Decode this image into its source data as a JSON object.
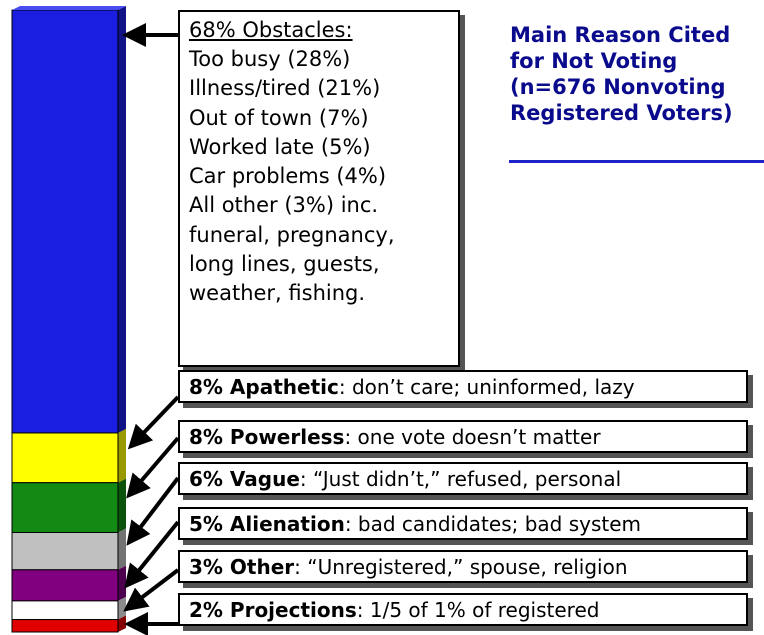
{
  "title": {
    "lines": [
      "Main Reason Cited",
      "for Not Voting",
      "(n=676 Nonvoting",
      "Registered Voters)"
    ]
  },
  "obstacles": {
    "heading": "68% Obstacles",
    "heading_suffix": ":",
    "items": [
      "Too busy (28%)",
      "Illness/tired (21%)",
      "Out of town (7%)",
      "Worked late (5%)",
      "Car problems (4%)",
      "All other (3%) inc.",
      "funeral, pregnancy,",
      "long lines, guests,",
      "weather, fishing."
    ]
  },
  "reasons": [
    {
      "label": "8% Apathetic",
      "text": ": don’t care; uninformed, lazy"
    },
    {
      "label": "8% Powerless",
      "text": ": one vote doesn’t matter"
    },
    {
      "label": "6% Vague",
      "text": ": “Just didn’t,” refused, personal"
    },
    {
      "label": "5% Alienation",
      "text": ": bad candidates; bad system"
    },
    {
      "label": "3% Other",
      "text": ": “Unregistered,” spouse, religion"
    },
    {
      "label": "2% Projections",
      "text": ":  1/5 of 1% of registered"
    }
  ],
  "chart_data": {
    "type": "bar",
    "stacked": true,
    "categories": [
      "Obstacles",
      "Apathetic",
      "Powerless",
      "Vague",
      "Alienation",
      "Other",
      "Projections"
    ],
    "values": [
      68,
      8,
      8,
      6,
      5,
      3,
      2
    ],
    "unit": "%",
    "colors": [
      "#1a1ee0",
      "#ffff00",
      "#138a13",
      "#c0c0c0",
      "#800080",
      "#ffffff",
      "#e00000"
    ],
    "title": "Main Reason Cited for Not Voting (n=676 Nonvoting Registered Voters)",
    "legend": "none",
    "grid": false
  }
}
